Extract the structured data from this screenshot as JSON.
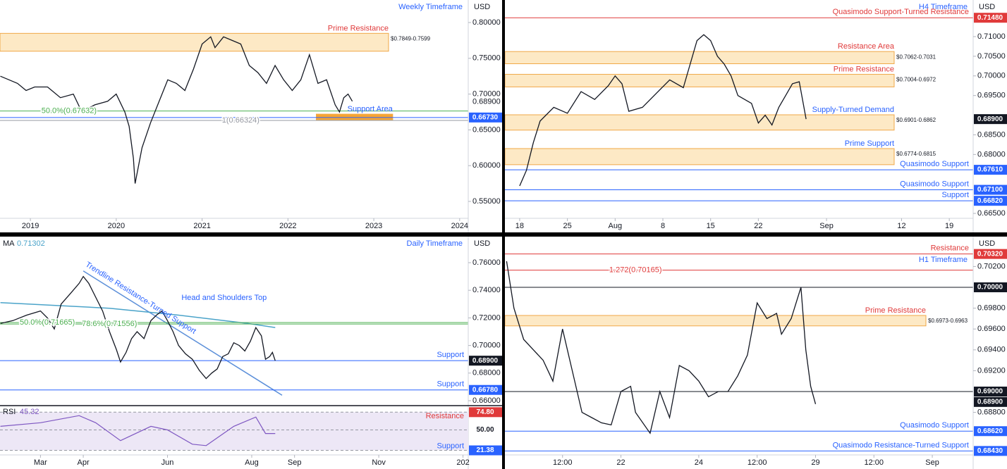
{
  "chart_data": [
    {
      "type": "line",
      "title": "Weekly Timeframe",
      "currency": "USD",
      "xlim": [
        2018.646,
        2024.1
      ],
      "xticks": [
        2019,
        2020,
        2021,
        2022,
        2023,
        2024
      ],
      "ylim": [
        0.5264,
        0.8315
      ],
      "yticks": [
        {
          "value": 0.8,
          "label": "0.80000"
        },
        {
          "value": 0.75,
          "label": "0.75000"
        },
        {
          "value": 0.7,
          "label": "0.70000"
        },
        {
          "value": 0.65,
          "label": "0.65000"
        },
        {
          "value": 0.6,
          "label": "0.60000"
        },
        {
          "value": 0.55,
          "label": "0.55000"
        }
      ],
      "color": "#131722",
      "x": [
        2018.65,
        2018.75,
        2018.85,
        2018.95,
        2019.05,
        2019.2,
        2019.35,
        2019.5,
        2019.6,
        2019.75,
        2019.9,
        2020.0,
        2020.1,
        2020.15,
        2020.2,
        2020.22,
        2020.3,
        2020.4,
        2020.5,
        2020.6,
        2020.7,
        2020.8,
        2020.9,
        2021.0,
        2021.1,
        2021.15,
        2021.25,
        2021.35,
        2021.45,
        2021.55,
        2021.65,
        2021.75,
        2021.85,
        2021.95,
        2022.05,
        2022.15,
        2022.25,
        2022.35,
        2022.45,
        2022.55,
        2022.6,
        2022.65,
        2022.7,
        2022.75
      ],
      "values": [
        0.725,
        0.72,
        0.715,
        0.705,
        0.71,
        0.71,
        0.695,
        0.7,
        0.675,
        0.685,
        0.69,
        0.7,
        0.675,
        0.655,
        0.61,
        0.575,
        0.625,
        0.66,
        0.69,
        0.72,
        0.715,
        0.705,
        0.735,
        0.77,
        0.78,
        0.765,
        0.78,
        0.775,
        0.77,
        0.74,
        0.73,
        0.715,
        0.74,
        0.72,
        0.705,
        0.72,
        0.755,
        0.715,
        0.72,
        0.685,
        0.675,
        0.695,
        0.7,
        0.69
      ],
      "zones": [
        {
          "name": "Prime Resistance",
          "name_color": "#e03a3a",
          "from": 0.7849,
          "to": 0.7599,
          "range_label": "$0.7849-0.7599",
          "fill": "#fde9c5"
        },
        {
          "name": "Support Area",
          "name_color": "#2962ff",
          "from": 0.672,
          "to": 0.664,
          "fill": "#f7a531",
          "xrange": [
            2022.33,
            2023.22
          ]
        }
      ],
      "levels": [
        {
          "value": 0.67632,
          "color": "#4caf50",
          "name": "50.0%(0.67632)",
          "anchor_x": 2019.45
        },
        {
          "value": 0.6673,
          "color": "#2962ff",
          "label": "0.66730"
        },
        {
          "value": 0.66324,
          "color": "#9598a1",
          "name": "1(0.66324)",
          "anchor_x": 2021.45
        }
      ],
      "last": {
        "value": 0.689,
        "label": "0.68900",
        "boxed": false
      }
    },
    {
      "type": "line",
      "title": "H4 Timeframe",
      "currency": "USD",
      "xlim": [
        -2.165,
        66.5
      ],
      "xticks": [
        {
          "value": 0,
          "label": "18"
        },
        {
          "value": 7,
          "label": "25"
        },
        {
          "value": 14,
          "label": "Aug"
        },
        {
          "value": 21,
          "label": "8"
        },
        {
          "value": 28,
          "label": "15"
        },
        {
          "value": 35,
          "label": "22"
        },
        {
          "value": 45,
          "label": "Sep"
        },
        {
          "value": 56,
          "label": "12"
        },
        {
          "value": 63,
          "label": "19"
        }
      ],
      "ylim": [
        0.66375,
        0.71932
      ],
      "yticks": [
        {
          "value": 0.71,
          "label": "0.71000"
        },
        {
          "value": 0.705,
          "label": "0.70500"
        },
        {
          "value": 0.7,
          "label": "0.70000"
        },
        {
          "value": 0.695,
          "label": "0.69500"
        },
        {
          "value": 0.685,
          "label": "0.68500"
        },
        {
          "value": 0.68,
          "label": "0.68000"
        },
        {
          "value": 0.665,
          "label": "0.66500"
        }
      ],
      "color": "#131722",
      "x": [
        0,
        1,
        2,
        3,
        5,
        7,
        9,
        11,
        13,
        14,
        15,
        16,
        18,
        20,
        22,
        24,
        26,
        27,
        28,
        29,
        30,
        31,
        32,
        34,
        35,
        36,
        37,
        38,
        39,
        40,
        41,
        42
      ],
      "values": [
        0.672,
        0.676,
        0.683,
        0.6885,
        0.692,
        0.6905,
        0.696,
        0.694,
        0.6975,
        0.7,
        0.698,
        0.691,
        0.692,
        0.6955,
        0.699,
        0.697,
        0.709,
        0.7105,
        0.709,
        0.705,
        0.703,
        0.7,
        0.695,
        0.693,
        0.688,
        0.69,
        0.6875,
        0.692,
        0.695,
        0.698,
        0.6985,
        0.689
      ],
      "zones": [
        {
          "name": "Resistance Area",
          "name_color": "#e03a3a",
          "from": 0.7062,
          "to": 0.7031,
          "range_label": "$0.7062-0.7031",
          "fill": "#fde9c5"
        },
        {
          "name": "Prime Resistance",
          "name_color": "#e03a3a",
          "from": 0.7004,
          "to": 0.6972,
          "range_label": "$0.7004-0.6972",
          "fill": "#fde9c5"
        },
        {
          "name": "Supply-Turned Demand",
          "name_color": "#2962ff",
          "from": 0.6901,
          "to": 0.6862,
          "range_label": "$0.6901-0.6862",
          "fill": "#fde9c5"
        },
        {
          "name": "Prime Support",
          "name_color": "#2962ff",
          "from": 0.6774,
          "to": 0.6815,
          "range_label": "$0.6774-0.6815",
          "fill": "#fde9c5"
        }
      ],
      "levels": [
        {
          "value": 0.7148,
          "color": "#e03a3a",
          "name": "Quasimodo Support-Turned Resistance",
          "label": "0.71480"
        },
        {
          "value": 0.6761,
          "color": "#2962ff",
          "name": "Quasimodo Support",
          "label": "0.67610"
        },
        {
          "value": 0.671,
          "color": "#2962ff",
          "name": "Quasimodo Support",
          "label": "0.67100"
        },
        {
          "value": 0.6682,
          "color": "#2962ff",
          "name": "Support",
          "label": "0.66820"
        }
      ],
      "last": {
        "value": 0.689,
        "label": "0.68900",
        "boxed": true
      }
    },
    {
      "type": "line",
      "title": "Daily Timeframe",
      "currency": "USD",
      "xlim": [
        -29.3,
        309.8
      ],
      "xticks": [
        {
          "value": 0,
          "label": "Mar"
        },
        {
          "value": 31,
          "label": "Apr"
        },
        {
          "value": 92,
          "label": "Jun"
        },
        {
          "value": 153,
          "label": "Aug"
        },
        {
          "value": 184,
          "label": "Sep"
        },
        {
          "value": 245,
          "label": "Nov"
        },
        {
          "value": 306,
          "label": "202"
        }
      ],
      "ylim": [
        0.65643,
        0.77888
      ],
      "yticks": [
        {
          "value": 0.76,
          "label": "0.76000"
        },
        {
          "value": 0.74,
          "label": "0.74000"
        },
        {
          "value": 0.72,
          "label": "0.72000"
        },
        {
          "value": 0.7,
          "label": "0.70000"
        },
        {
          "value": 0.68,
          "label": "0.68000"
        },
        {
          "value": 0.66,
          "label": "0.66000"
        }
      ],
      "color": "#131722",
      "x": [
        -29,
        -20,
        -10,
        0,
        5,
        10,
        15,
        22,
        28,
        31,
        35,
        40,
        45,
        50,
        55,
        58,
        62,
        66,
        70,
        75,
        80,
        84,
        88,
        92,
        96,
        100,
        105,
        110,
        115,
        120,
        124,
        128,
        132,
        136,
        140,
        144,
        148,
        152,
        156,
        160,
        163,
        166,
        168,
        170
      ],
      "values": [
        0.716,
        0.718,
        0.722,
        0.725,
        0.72,
        0.712,
        0.73,
        0.738,
        0.745,
        0.75,
        0.745,
        0.735,
        0.725,
        0.71,
        0.697,
        0.688,
        0.695,
        0.705,
        0.71,
        0.705,
        0.718,
        0.722,
        0.725,
        0.718,
        0.71,
        0.7,
        0.694,
        0.69,
        0.682,
        0.676,
        0.68,
        0.683,
        0.692,
        0.694,
        0.702,
        0.7,
        0.696,
        0.703,
        0.713,
        0.707,
        0.69,
        0.692,
        0.695,
        0.689
      ],
      "ma": {
        "name": "MA",
        "value": 0.71302,
        "color": "#4aa3c9",
        "x": [
          -29,
          50,
          100,
          150,
          170
        ],
        "values": [
          0.731,
          0.727,
          0.722,
          0.716,
          0.713
        ]
      },
      "trendline": {
        "color": "#5b8fd9",
        "x": [
          31,
          175
        ],
        "values": [
          0.754,
          0.664
        ]
      },
      "annotations": [
        {
          "text": "Trendline Resistance-Turned Support",
          "x": 33,
          "y": 0.759,
          "rotated": true
        },
        {
          "text": "Head and Shoulders Top",
          "x": 133,
          "y": 0.7345,
          "rotated": false
        }
      ],
      "levels": [
        {
          "value": 0.71665,
          "color": "#4caf50",
          "name": "50.0%(0.71665)",
          "anchor_x": 5
        },
        {
          "value": 0.71556,
          "color": "#4caf50",
          "name": "78.6%(0.71556)",
          "anchor_x": 50
        },
        {
          "value": 0.689,
          "color": "#2962ff",
          "name": "Support"
        },
        {
          "value": 0.6678,
          "color": "#2962ff",
          "name": "Support",
          "label": "0.66780"
        }
      ],
      "last": {
        "value": 0.689,
        "label": "0.68900",
        "boxed": true
      },
      "rsi": {
        "name": "RSI",
        "value": 45.32,
        "color": "#7e57c2",
        "ylim": [
          15,
          82
        ],
        "x": [
          -29,
          0,
          28,
          40,
          58,
          80,
          92,
          110,
          120,
          140,
          156,
          163,
          170
        ],
        "values": [
          55,
          60,
          70,
          60,
          35,
          55,
          50,
          30,
          28,
          55,
          68,
          45,
          45
        ],
        "levels": [
          {
            "value": 74.8,
            "label": "74.80",
            "name": "Resistance",
            "color": "#e03a3a"
          },
          {
            "value": 50,
            "label": "50.00",
            "color": "#9598a1"
          },
          {
            "value": 21.38,
            "label": "21.38",
            "name": "Support",
            "color": "#2962ff"
          }
        ]
      }
    },
    {
      "type": "line",
      "title": "H1 Timeframe",
      "currency": "USD",
      "xlim": [
        0.15,
        96.4
      ],
      "xticks": [
        {
          "value": 12,
          "label": "12:00"
        },
        {
          "value": 24,
          "label": "22"
        },
        {
          "value": 40,
          "label": "24"
        },
        {
          "value": 52,
          "label": "12:00"
        },
        {
          "value": 64,
          "label": "29"
        },
        {
          "value": 76,
          "label": "12:00"
        },
        {
          "value": 88,
          "label": "Sep"
        }
      ],
      "ylim": [
        0.68392,
        0.704865
      ],
      "yticks": [
        {
          "value": 0.702,
          "label": "0.70200"
        },
        {
          "value": 0.698,
          "label": "0.69800"
        },
        {
          "value": 0.696,
          "label": "0.69600"
        },
        {
          "value": 0.694,
          "label": "0.69400"
        },
        {
          "value": 0.692,
          "label": "0.69200"
        },
        {
          "value": 0.688,
          "label": "0.68800"
        }
      ],
      "color": "#131722",
      "x": [
        0.5,
        2,
        4,
        6,
        8,
        10,
        12,
        14,
        16,
        18,
        20,
        22,
        24,
        26,
        27,
        30,
        32,
        34,
        36,
        38,
        40,
        42,
        44,
        46,
        48,
        50,
        52,
        54,
        56,
        57,
        59,
        61,
        62,
        63,
        64
      ],
      "values": [
        0.7025,
        0.698,
        0.695,
        0.694,
        0.693,
        0.691,
        0.696,
        0.692,
        0.688,
        0.6875,
        0.687,
        0.6868,
        0.69,
        0.6905,
        0.688,
        0.686,
        0.69,
        0.6875,
        0.6925,
        0.692,
        0.691,
        0.6895,
        0.69,
        0.69,
        0.6915,
        0.6935,
        0.6985,
        0.697,
        0.6975,
        0.6955,
        0.697,
        0.7,
        0.694,
        0.6905,
        0.6888
      ],
      "zones": [
        {
          "name": "Prime Resistance",
          "name_color": "#e03a3a",
          "from": 0.6973,
          "to": 0.6963,
          "range_label": "$0.6973-0.6963",
          "fill": "#fde9c5"
        }
      ],
      "levels": [
        {
          "value": 0.7032,
          "color": "#e03a3a",
          "name": "Resistance",
          "label": "0.70320"
        },
        {
          "value": 0.70165,
          "color": "#e03a3a",
          "name": "1.272(0.70165)",
          "anchor_x": 27
        },
        {
          "value": 0.7,
          "color": "#131722",
          "label": "0.70000"
        },
        {
          "value": 0.69,
          "color": "#131722",
          "label": "0.69000"
        },
        {
          "value": 0.6862,
          "color": "#2962ff",
          "name": "Quasimodo Support",
          "label": "0.68620"
        },
        {
          "value": 0.6843,
          "color": "#2962ff",
          "name": "Quasimodo Resistance-Turned Support",
          "label": "0.68430"
        }
      ],
      "last": {
        "value": 0.689,
        "label": "0.68900",
        "boxed": true
      }
    }
  ]
}
